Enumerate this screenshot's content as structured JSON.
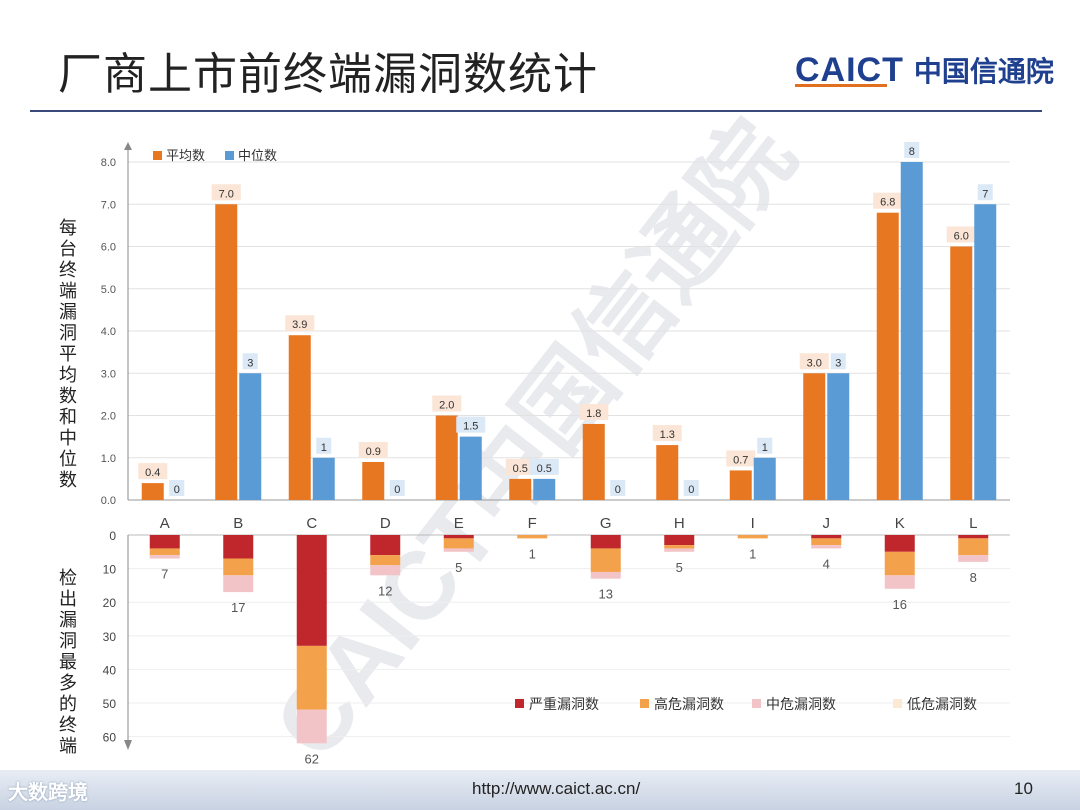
{
  "page": {
    "title": "厂商上市前终端漏洞数统计",
    "logo_en": "CAICT",
    "logo_cn": "中国信通院",
    "url": "http://www.caict.ac.cn/",
    "page_number": "10",
    "badge": "大数跨境",
    "watermark": "CAICT中国信通院"
  },
  "chart_data": [
    {
      "type": "bar",
      "ylabel": "每台终端漏洞平均数和中位数",
      "ylim": [
        0,
        8
      ],
      "yticks": [
        "0.0",
        "1.0",
        "2.0",
        "3.0",
        "4.0",
        "5.0",
        "6.0",
        "7.0",
        "8.0"
      ],
      "categories": [
        "A",
        "B",
        "C",
        "D",
        "E",
        "F",
        "G",
        "H",
        "I",
        "J",
        "K",
        "L"
      ],
      "legend_position": "top-left",
      "series": [
        {
          "name": "平均数",
          "color": "#e87722",
          "values": [
            0.4,
            7.0,
            3.9,
            0.9,
            2.0,
            0.5,
            1.8,
            1.3,
            0.7,
            3.0,
            6.8,
            6.0
          ],
          "labels": [
            "0.4",
            "7.0",
            "3.9",
            "0.9",
            "2.0",
            "0.5",
            "1.8",
            "1.3",
            "0.7",
            "3.0",
            "6.8",
            "6.0"
          ]
        },
        {
          "name": "中位数",
          "color": "#5b9bd5",
          "values": [
            0,
            3,
            1,
            0,
            1.5,
            0.5,
            0,
            0,
            1,
            3,
            8,
            7
          ],
          "labels": [
            "0",
            "3",
            "1",
            "0",
            "1.5",
            "0.5",
            "0",
            "0",
            "1",
            "3",
            "8",
            "7"
          ]
        }
      ]
    },
    {
      "type": "bar",
      "stacked": true,
      "inverted": true,
      "ylabel": "检出漏洞最多的终端",
      "ylim": [
        0,
        60
      ],
      "yticks": [
        "0",
        "10",
        "20",
        "30",
        "40",
        "50",
        "60"
      ],
      "categories": [
        "A",
        "B",
        "C",
        "D",
        "E",
        "F",
        "G",
        "H",
        "I",
        "J",
        "K",
        "L"
      ],
      "legend_position": "bottom-right",
      "totals": [
        "7",
        "17",
        "62",
        "12",
        "5",
        "1",
        "13",
        "5",
        "1",
        "4",
        "16",
        "8"
      ],
      "series": [
        {
          "name": "严重漏洞数",
          "color": "#c0272d",
          "values": [
            4,
            7,
            33,
            6,
            1,
            0,
            4,
            3,
            0,
            1,
            5,
            1
          ]
        },
        {
          "name": "高危漏洞数",
          "color": "#f4a14b",
          "values": [
            2,
            5,
            19,
            3,
            3,
            1,
            7,
            1,
            1,
            2,
            7,
            5
          ]
        },
        {
          "name": "中危漏洞数",
          "color": "#f2c4c8",
          "values": [
            1,
            5,
            10,
            3,
            1,
            0,
            2,
            1,
            0,
            1,
            4,
            2
          ]
        },
        {
          "name": "低危漏洞数",
          "color": "#fbe9d4",
          "values": [
            0,
            0,
            0,
            0,
            0,
            0,
            0,
            0,
            0,
            0,
            0,
            0
          ]
        }
      ]
    }
  ]
}
